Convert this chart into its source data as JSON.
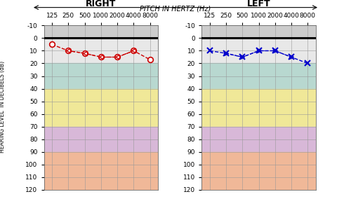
{
  "title_top": "PITCH IN HERTZ (Hz)",
  "title_right": "RIGHT",
  "title_left": "LEFT",
  "ylabel": "HEARING LEVEL  IN DECIBELS (dB)",
  "x_labels": [
    "125",
    "250",
    "500",
    "1000",
    "2000",
    "4000",
    "8000"
  ],
  "x_positions": [
    0,
    1,
    2,
    3,
    4,
    5,
    6
  ],
  "y_min": -10,
  "y_max": 120,
  "y_ticks": [
    -10,
    0,
    10,
    20,
    30,
    40,
    50,
    60,
    70,
    80,
    90,
    100,
    110,
    120
  ],
  "right_ac": [
    5,
    10,
    12,
    15,
    15,
    10,
    17
  ],
  "left_ac": [
    10,
    12,
    15,
    10,
    10,
    15,
    20
  ],
  "right_bc_x": [
    1,
    2,
    3,
    4,
    5
  ],
  "right_bc_y": [
    10,
    12,
    15,
    15,
    10
  ],
  "left_bc_x": [
    1,
    2,
    3,
    4,
    5
  ],
  "left_bc_y": [
    12,
    15,
    10,
    10,
    15
  ],
  "bg_bands": [
    {
      "ymin": -10,
      "ymax": 0,
      "color": "#cccccc"
    },
    {
      "ymin": 0,
      "ymax": 20,
      "color": "#e8e8e8"
    },
    {
      "ymin": 20,
      "ymax": 40,
      "color": "#b8d8d0"
    },
    {
      "ymin": 40,
      "ymax": 70,
      "color": "#f0e898"
    },
    {
      "ymin": 70,
      "ymax": 90,
      "color": "#d8b8d8"
    },
    {
      "ymin": 90,
      "ymax": 120,
      "color": "#f0b898"
    }
  ],
  "right_color": "#cc0000",
  "left_color": "#0000cc",
  "zero_line_color": "#000000",
  "grid_color": "#999999"
}
